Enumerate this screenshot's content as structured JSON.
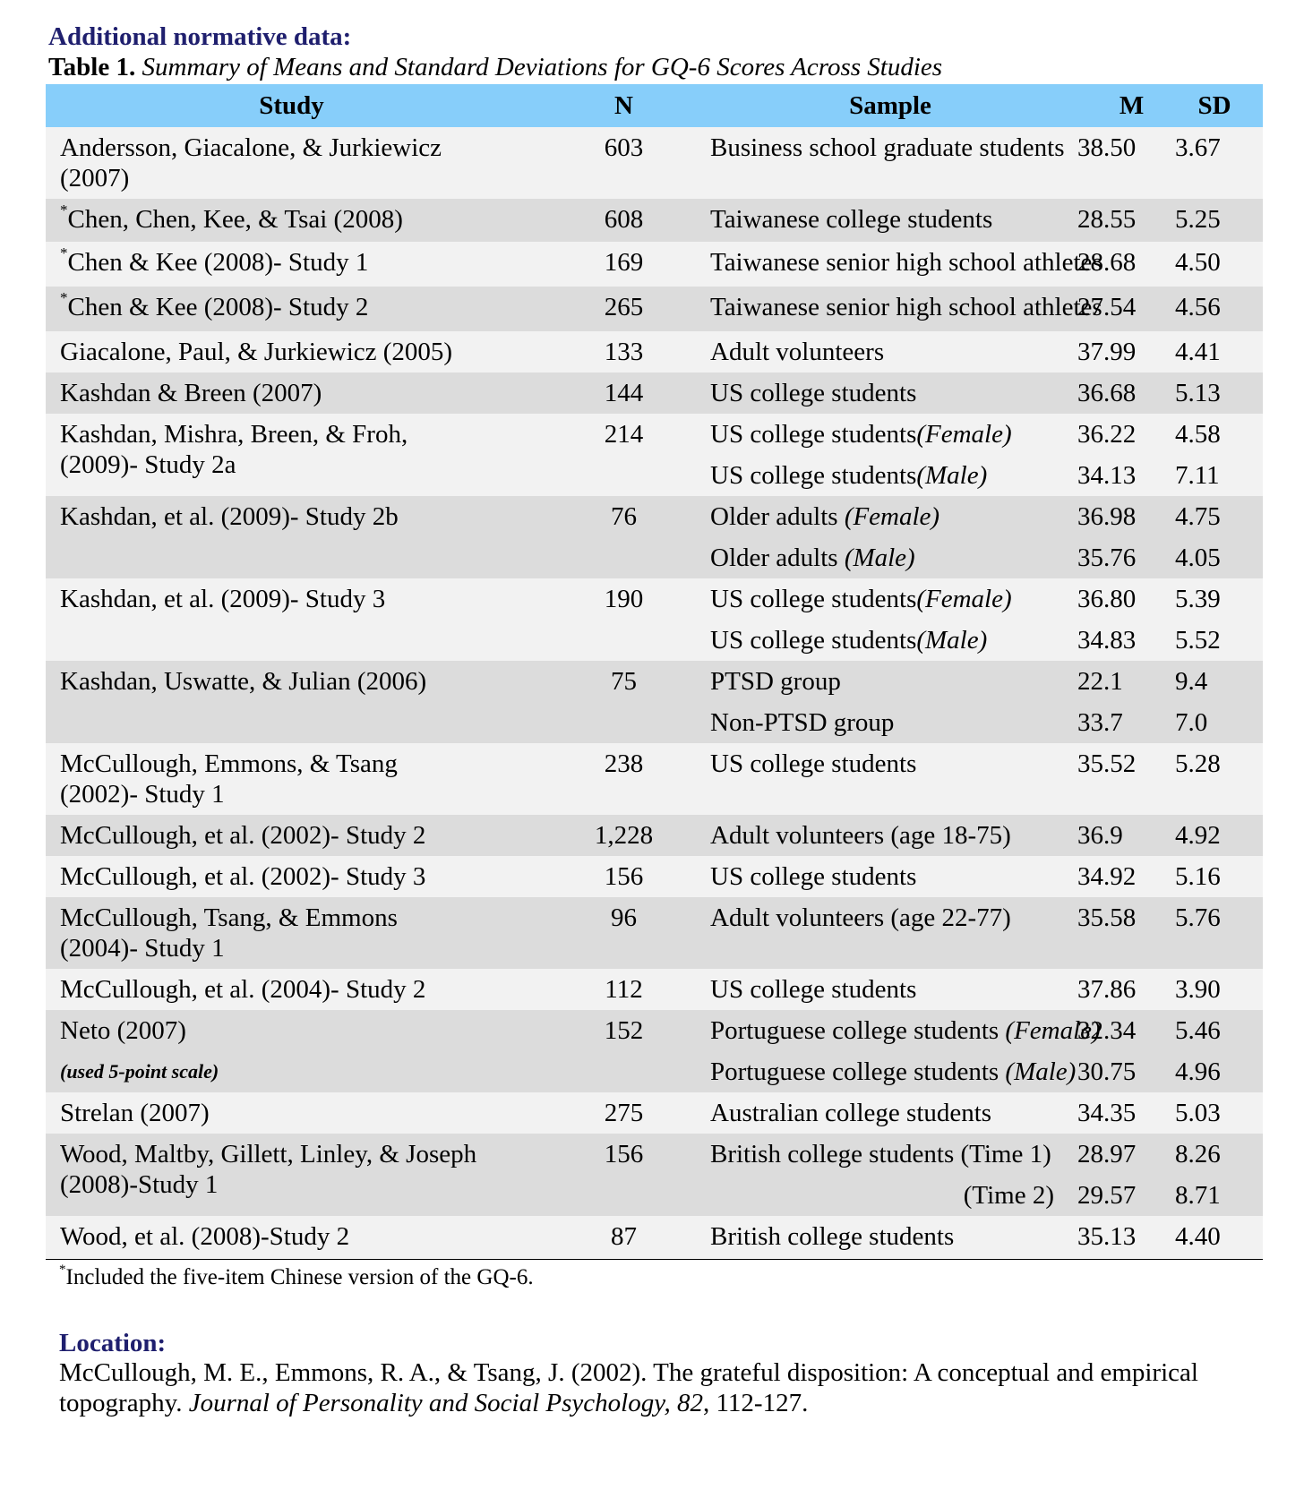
{
  "heading": "Additional normative data:",
  "caption": {
    "label": "Table 1.",
    "title": "Summary of Means and Standard Deviations for GQ-6 Scores Across Studies"
  },
  "columns": {
    "study": "Study",
    "n": "N",
    "sample": "Sample",
    "m": "M",
    "sd": "SD"
  },
  "rows": [
    {
      "study": [
        "Andersson, Giacalone, & Jurkiewicz",
        "(2007)"
      ],
      "asterisk": false,
      "n": "603",
      "samples": [
        {
          "text": "Business school graduate students",
          "m": "38.50",
          "sd": "3.67"
        }
      ]
    },
    {
      "study": [
        "Chen, Chen, Kee, & Tsai (2008)"
      ],
      "asterisk": true,
      "n": "608",
      "samples": [
        {
          "text": "Taiwanese college students",
          "m": "28.55",
          "sd": "5.25"
        }
      ]
    },
    {
      "study": [
        "Chen & Kee (2008)- Study 1"
      ],
      "asterisk": true,
      "n": "169",
      "samples": [
        {
          "text": "Taiwanese senior high school athletes",
          "m": "28.68",
          "sd": "4.50"
        }
      ]
    },
    {
      "study": [
        "Chen & Kee (2008)- Study 2"
      ],
      "asterisk": true,
      "n": "265",
      "samples": [
        {
          "text": "Taiwanese senior high school athletes",
          "m": "27.54",
          "sd": "4.56"
        }
      ]
    },
    {
      "study": [
        "Giacalone, Paul, & Jurkiewicz (2005)"
      ],
      "asterisk": false,
      "n": "133",
      "samples": [
        {
          "text": "Adult volunteers",
          "m": "37.99",
          "sd": "4.41"
        }
      ]
    },
    {
      "study": [
        "Kashdan & Breen (2007)"
      ],
      "asterisk": false,
      "n": "144",
      "samples": [
        {
          "text": "US college students",
          "m": "36.68",
          "sd": "5.13"
        }
      ]
    },
    {
      "study": [
        "Kashdan, Mishra, Breen, & Froh,",
        "(2009)- Study 2a"
      ],
      "asterisk": false,
      "n": "214",
      "samples": [
        {
          "text": "US college students",
          "qualifier": "(Female)",
          "m": "36.22",
          "sd": "4.58"
        },
        {
          "text": "US college students",
          "qualifier": "(Male)",
          "m": "34.13",
          "sd": "7.11"
        }
      ]
    },
    {
      "study": [
        "Kashdan, et al. (2009)- Study 2b"
      ],
      "asterisk": false,
      "n": "76",
      "samples": [
        {
          "text": "Older adults ",
          "qualifier": "(Female)",
          "m": "36.98",
          "sd": "4.75"
        },
        {
          "text": "Older adults ",
          "qualifier": "(Male)",
          "m": "35.76",
          "sd": "4.05"
        }
      ]
    },
    {
      "study": [
        "Kashdan, et al. (2009)- Study 3"
      ],
      "asterisk": false,
      "n": "190",
      "samples": [
        {
          "text": "US college students",
          "qualifier": "(Female)",
          "m": "36.80",
          "sd": "5.39"
        },
        {
          "text": "US college students",
          "qualifier": "(Male)",
          "m": "34.83",
          "sd": "5.52"
        }
      ]
    },
    {
      "study": [
        "Kashdan, Uswatte, & Julian (2006)"
      ],
      "asterisk": false,
      "n": "75",
      "samples": [
        {
          "text": "PTSD group",
          "m": "22.1",
          "sd": "9.4"
        },
        {
          "text": "Non-PTSD group",
          "m": "33.7",
          "sd": "7.0"
        }
      ]
    },
    {
      "study": [
        "McCullough, Emmons, & Tsang",
        "(2002)- Study 1"
      ],
      "asterisk": false,
      "n": "238",
      "samples": [
        {
          "text": "US college students",
          "m": "35.52",
          "sd": "5.28"
        }
      ]
    },
    {
      "study": [
        "McCullough, et al. (2002)- Study 2"
      ],
      "asterisk": false,
      "n": "1,228",
      "samples": [
        {
          "text": "Adult volunteers (age 18-75)",
          "m": "36.9",
          "sd": "4.92"
        }
      ]
    },
    {
      "study": [
        "McCullough, et al. (2002)- Study 3"
      ],
      "asterisk": false,
      "n": "156",
      "samples": [
        {
          "text": "US college students",
          "m": "34.92",
          "sd": "5.16"
        }
      ]
    },
    {
      "study": [
        "McCullough, Tsang, & Emmons",
        "(2004)- Study 1"
      ],
      "asterisk": false,
      "n": "96",
      "samples": [
        {
          "text": "Adult volunteers (age 22-77)",
          "m": "35.58",
          "sd": "5.76"
        }
      ]
    },
    {
      "study": [
        "McCullough, et al. (2004)- Study 2"
      ],
      "asterisk": false,
      "n": "112",
      "samples": [
        {
          "text": "US college students",
          "m": "37.86",
          "sd": "3.90"
        }
      ]
    },
    {
      "study": [
        "Neto (2007)"
      ],
      "study_note": "(used 5-point scale)",
      "asterisk": false,
      "n": "152",
      "samples": [
        {
          "text": "Portuguese college students ",
          "qualifier": "(Female)",
          "m": "32.34",
          "sd": "5.46"
        },
        {
          "text": "Portuguese college students ",
          "qualifier": "(Male)",
          "m": "30.75",
          "sd": "4.96"
        }
      ]
    },
    {
      "study": [
        "Strelan (2007)"
      ],
      "asterisk": false,
      "n": "275",
      "samples": [
        {
          "text": "Australian college students",
          "m": "34.35",
          "sd": "5.03"
        }
      ]
    },
    {
      "study": [
        "Wood, Maltby, Gillett, Linley, & Joseph",
        "(2008)-Study 1"
      ],
      "asterisk": false,
      "n": "156",
      "samples": [
        {
          "text": "British college students (Time 1)",
          "m": "28.97",
          "sd": "8.26"
        },
        {
          "text": "(Time 2)",
          "align": "right",
          "m": "29.57",
          "sd": "8.71"
        }
      ]
    },
    {
      "study": [
        "Wood, et al. (2008)-Study 2"
      ],
      "asterisk": false,
      "n": "87",
      "samples": [
        {
          "text": "British college students",
          "m": "35.13",
          "sd": "4.40"
        }
      ]
    }
  ],
  "footnote": {
    "marker": "*",
    "text": "Included the five-item Chinese version of the GQ-6."
  },
  "location": {
    "heading": "Location:",
    "ref_plain_1": "McCullough, M. E., Emmons, R. A., & Tsang, J. (2002). The grateful disposition: A conceptual and empirical topography. ",
    "ref_italic_1": "Journal of Personality and Social Psychology, 82",
    "ref_plain_2": ", 112-127."
  }
}
